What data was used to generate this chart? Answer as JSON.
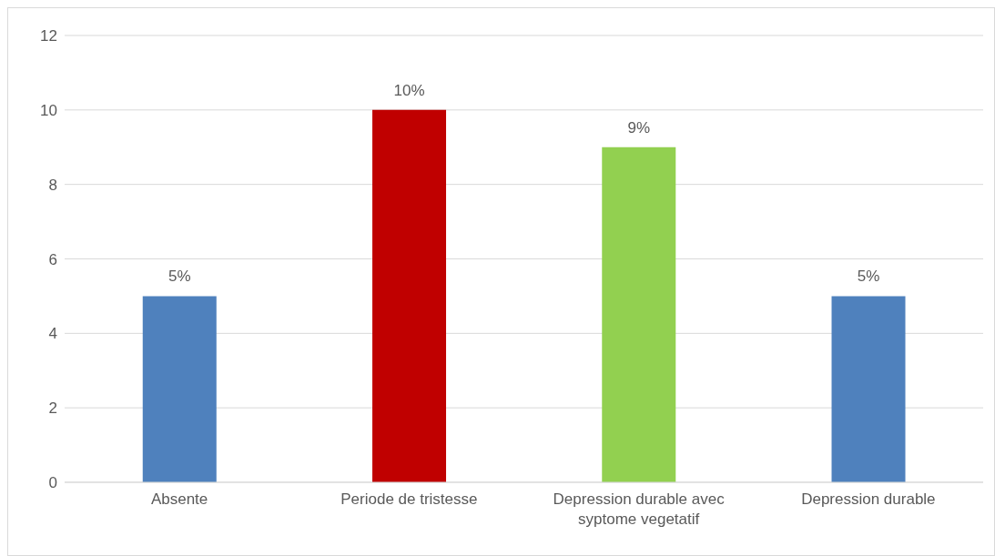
{
  "chart_data": {
    "type": "bar",
    "categories": [
      "Absente",
      "Periode de tristesse",
      "Depression durable avec syptome vegetatif",
      "Depression durable"
    ],
    "values": [
      5,
      10,
      9,
      5
    ],
    "colors": [
      "#4f81bd",
      "#c00000",
      "#92d050",
      "#4f81bd"
    ],
    "value_labels": [
      "5%",
      "10%",
      "9%",
      "5%"
    ],
    "ylim": [
      0,
      12
    ],
    "yticks": [
      0,
      2,
      4,
      6,
      8,
      10,
      12
    ],
    "grid": "y",
    "legend": false
  }
}
